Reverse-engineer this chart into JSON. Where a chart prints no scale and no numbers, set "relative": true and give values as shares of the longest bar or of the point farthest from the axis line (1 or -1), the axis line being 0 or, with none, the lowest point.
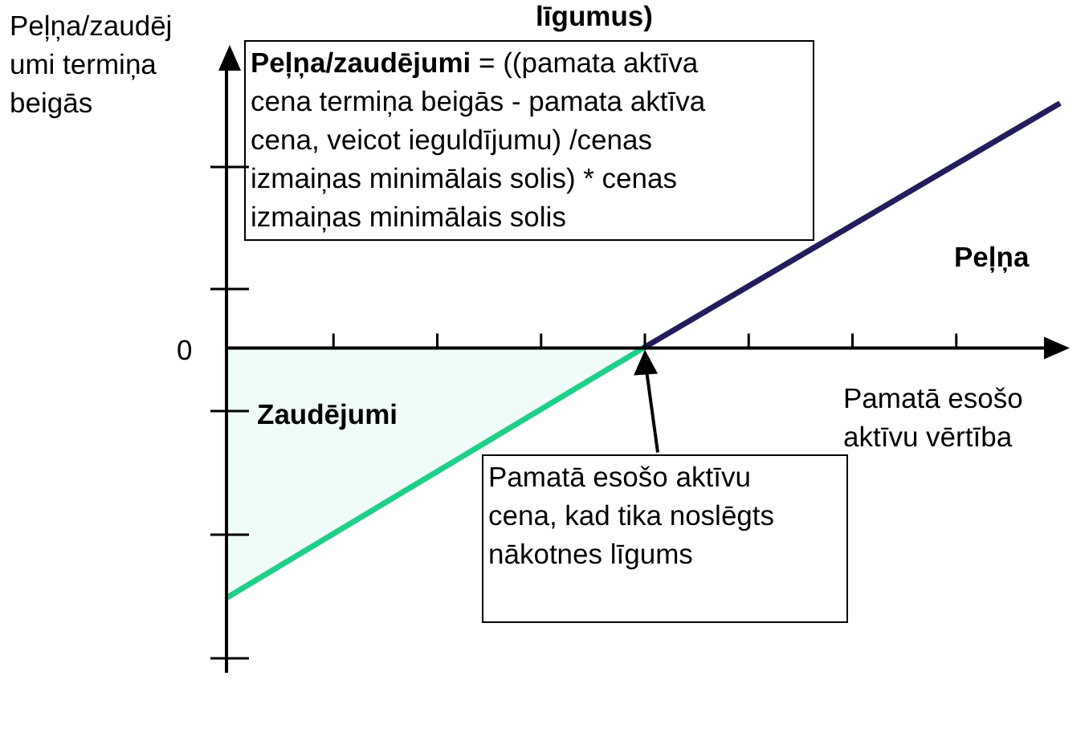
{
  "chart_data": {
    "type": "line",
    "title": "līgumus)",
    "xlabel": "Pamatā esošo aktīvu vērtība",
    "ylabel": "Peļņa/zaudējumi termiņa beigās",
    "relative": true,
    "legend": false,
    "marker": "none",
    "categories": [
      null,
      null,
      null
    ],
    "series": [
      {
        "type": "area",
        "color": "#1fcf8a",
        "values": [
          -1,
          0,
          null
        ]
      },
      {
        "color": "#221d5c",
        "values": [
          null,
          0,
          0.98
        ]
      }
    ],
    "annotations": [
      "0",
      "Peļņa/zaudējumi = ((pamata aktīva cena termiņa beigās - pamata aktīva cena, veicot ieguldījumu) /cenas izmaiņas minimālais solis) * cenas izmaiņas minimālais solis",
      "Peļņa",
      "Zaudējumi",
      "Pamatā esošo aktīvu cena, kad tika noslēgts nākotnes līgums"
    ]
  }
}
